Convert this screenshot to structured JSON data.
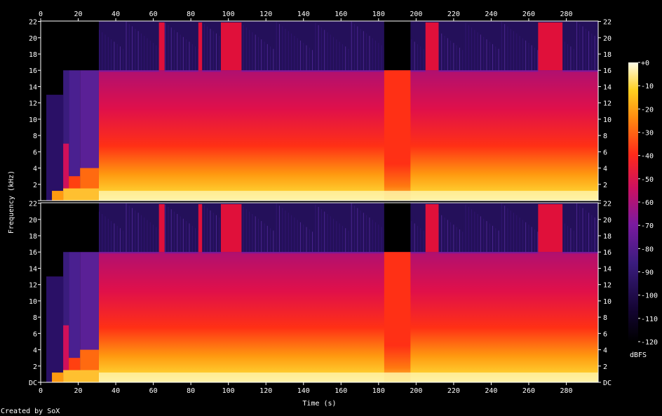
{
  "chart_data": {
    "type": "heatmap",
    "title": "",
    "xlabel": "Time (s)",
    "ylabel": "Frequency (kHz)",
    "xlim": [
      0,
      297
    ],
    "ylim": [
      0,
      22.05
    ],
    "x_ticks": [
      0,
      20,
      40,
      60,
      80,
      100,
      120,
      140,
      160,
      180,
      200,
      220,
      240,
      260,
      280
    ],
    "y_ticks": [
      0,
      2,
      4,
      6,
      8,
      10,
      12,
      14,
      16,
      18,
      20,
      22
    ],
    "y_tick_labels_top": [
      "",
      "2",
      "4",
      "6",
      "8",
      "10",
      "12",
      "14",
      "16",
      "18",
      "20",
      "22"
    ],
    "y_tick_labels_bottom": [
      "DC",
      "2",
      "4",
      "6",
      "8",
      "10",
      "12",
      "14",
      "16",
      "18",
      "20",
      "22"
    ],
    "channels": 2,
    "colorbar": {
      "label": "dBFS",
      "ticks": [
        "+0",
        "-10",
        "-20",
        "-30",
        "-40",
        "-50",
        "-60",
        "-70",
        "-80",
        "-90",
        "-100",
        "-110",
        "-120"
      ],
      "range": [
        -120,
        0
      ]
    },
    "palette": {
      "silence": "#000000",
      "very_low": "#1a0640",
      "low": "#3a1c7d",
      "mid_low": "#7a1aa0",
      "mid": "#d0105a",
      "high": "#ff2a1a",
      "very_high": "#ff9a10",
      "peak": "#ffee90"
    },
    "annotations": {
      "lowpass_cutoff_khz": 16,
      "full_band_bursts_s": [
        [
          63,
          66
        ],
        [
          84,
          86
        ],
        [
          96,
          107
        ],
        [
          205,
          212
        ],
        [
          265,
          278
        ]
      ],
      "quiet_section_s": [
        183,
        197
      ],
      "intro_end_s": 31
    }
  },
  "footer": {
    "text": "Created by SoX"
  }
}
